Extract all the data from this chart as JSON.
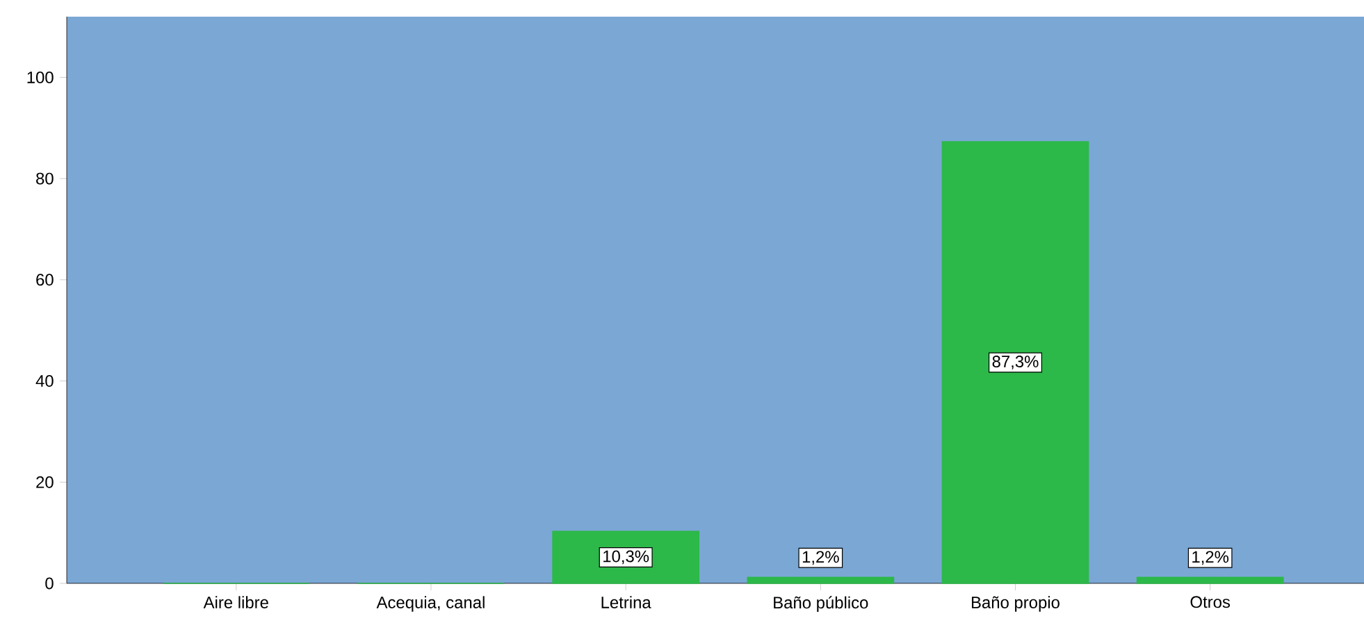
{
  "chart_data": {
    "type": "bar",
    "categories": [
      "Aire libre",
      "Acequia, canal",
      "Letrina",
      "Baño público",
      "Baño propio",
      "Otros"
    ],
    "values": [
      0,
      0,
      10.3,
      1.2,
      87.3,
      1.2
    ],
    "value_labels": [
      null,
      null,
      "10,3%",
      "1,2%",
      "87,3%",
      "1,2%"
    ],
    "color": "#2db84a",
    "ylim": [
      0,
      112
    ],
    "yticks": [
      0,
      20,
      40,
      60,
      80,
      100
    ],
    "grid": false
  }
}
